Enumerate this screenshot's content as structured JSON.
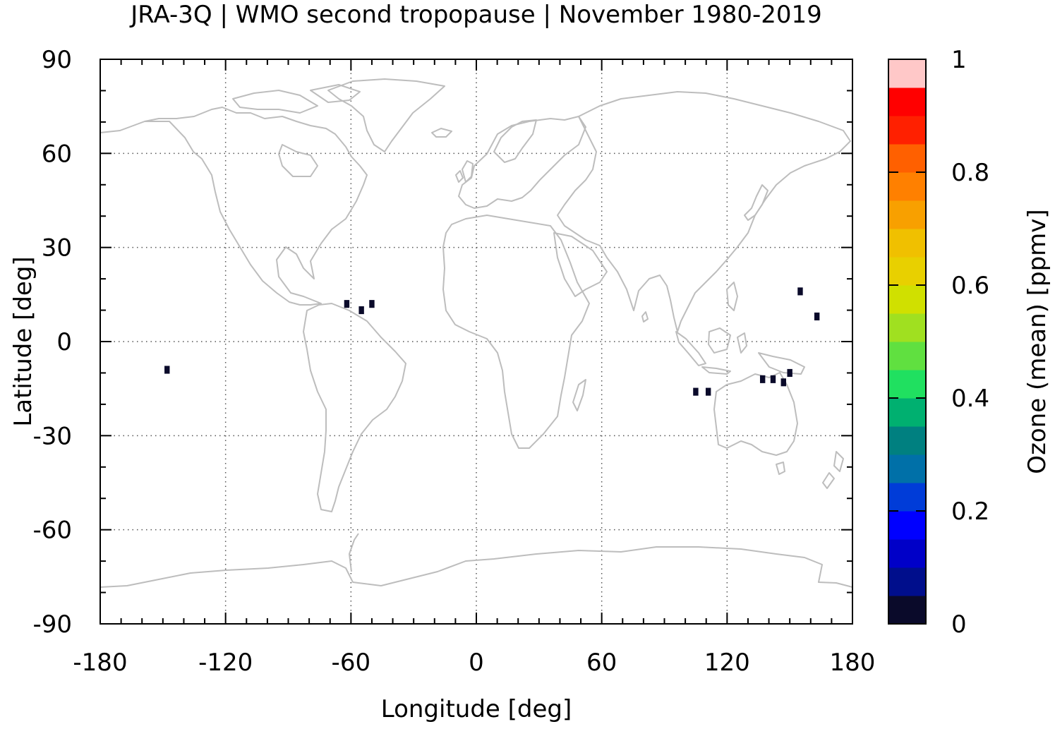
{
  "chart_data": {
    "type": "heatmap",
    "title": "JRA-3Q | WMO second tropopause | November 1980-2019",
    "xlabel": "Longitude [deg]",
    "ylabel": "Latitude [deg]",
    "colorbar_label": "Ozone (mean) [ppmv]",
    "xlim": [
      -180,
      180
    ],
    "ylim": [
      -90,
      90
    ],
    "x_ticks": [
      -180,
      -120,
      -60,
      0,
      60,
      120,
      180
    ],
    "x_tick_labels": [
      "-180",
      "-120",
      "-60",
      "0",
      "60",
      "120",
      "180"
    ],
    "y_ticks": [
      90,
      60,
      30,
      0,
      -30,
      -60,
      -90
    ],
    "y_tick_labels": [
      "90",
      "60",
      "30",
      "0",
      "-30",
      "-60",
      "-90"
    ],
    "grid": true,
    "colorbar": {
      "range": [
        0,
        1
      ],
      "ticks": [
        0,
        0.2,
        0.4,
        0.6,
        0.8,
        1
      ],
      "tick_labels": [
        "0",
        "0.2",
        "0.4",
        "0.6",
        "0.8",
        "1"
      ],
      "levels": 20,
      "colors": [
        "#0a0a2a",
        "#000e8c",
        "#0000c8",
        "#0000ff",
        "#003cd8",
        "#0070a8",
        "#008080",
        "#00b070",
        "#20e060",
        "#60e040",
        "#a0e020",
        "#d0e000",
        "#e8d000",
        "#f0c000",
        "#f8a000",
        "#ff8000",
        "#ff6000",
        "#ff2000",
        "#ff0000",
        "#ffc8c8"
      ]
    },
    "data_cells": [
      {
        "lon": -62,
        "lat": 12,
        "value": 0.02
      },
      {
        "lon": -55,
        "lat": 10,
        "value": 0.02
      },
      {
        "lon": -50,
        "lat": 12,
        "value": 0.02
      },
      {
        "lon": -148,
        "lat": -9,
        "value": 0.02
      },
      {
        "lon": 105,
        "lat": -16,
        "value": 0.02
      },
      {
        "lon": 111,
        "lat": -16,
        "value": 0.02
      },
      {
        "lon": 137,
        "lat": -12,
        "value": 0.02
      },
      {
        "lon": 142,
        "lat": -12,
        "value": 0.02
      },
      {
        "lon": 147,
        "lat": -13,
        "value": 0.02
      },
      {
        "lon": 150,
        "lat": -10,
        "value": 0.02
      },
      {
        "lon": 155,
        "lat": 16,
        "value": 0.02
      },
      {
        "lon": 163,
        "lat": 8,
        "value": 0.02
      }
    ]
  }
}
